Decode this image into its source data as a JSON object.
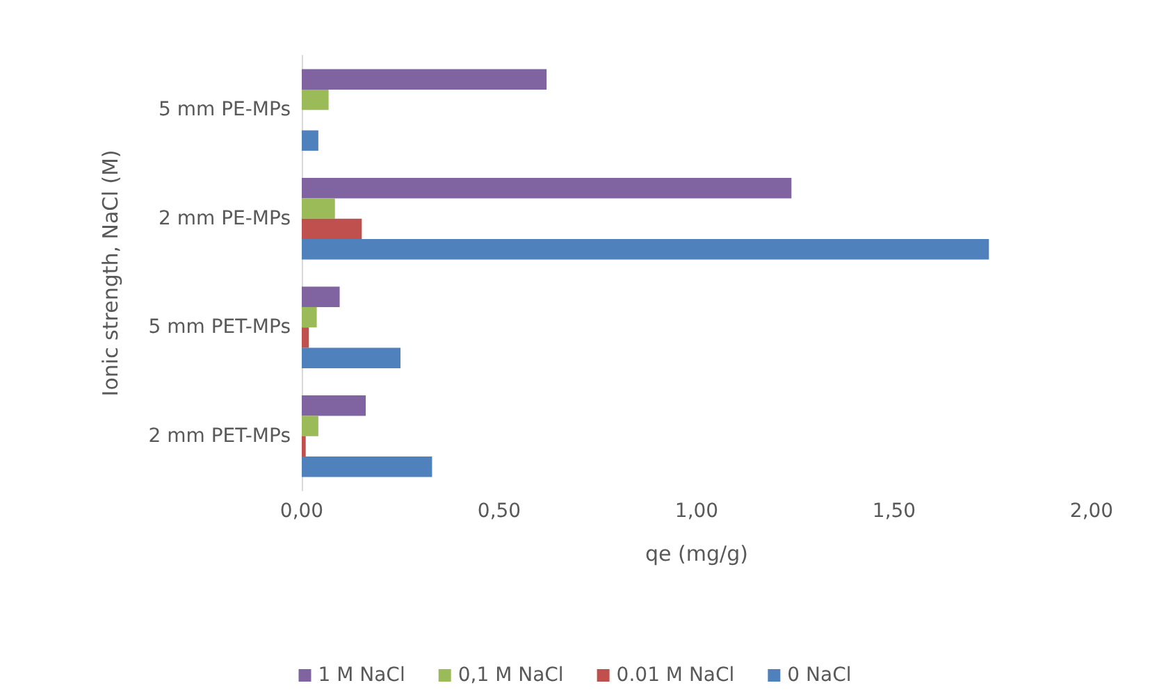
{
  "chart_data": {
    "type": "bar",
    "orientation": "horizontal",
    "xlabel": "qe (mg/g)",
    "ylabel": "Ionic strength, NaCl (M)",
    "categories": [
      "5 mm PE-MPs",
      "2 mm PE-MPs",
      "5 mm PET-MPs",
      "2 mm PET-MPs"
    ],
    "series": [
      {
        "name": "1 M NaCl",
        "color": "#8064a2",
        "values": [
          0.62,
          1.24,
          0.096,
          0.162
        ]
      },
      {
        "name": "0,1 M NaCl",
        "color": "#9bbb59",
        "values": [
          0.068,
          0.084,
          0.038,
          0.042
        ]
      },
      {
        "name": "0.01 M NaCl",
        "color": "#c0504d",
        "values": [
          0,
          0.152,
          0.018,
          0.01
        ]
      },
      {
        "name": "0 NaCl",
        "color": "#4f81bd",
        "values": [
          0.042,
          1.74,
          0.25,
          0.33
        ]
      }
    ],
    "xlim": [
      0,
      2
    ],
    "xticks": [
      {
        "value": 0,
        "label": "0,00"
      },
      {
        "value": 0.5,
        "label": "0,50"
      },
      {
        "value": 1,
        "label": "1,00"
      },
      {
        "value": 1.5,
        "label": "1,50"
      },
      {
        "value": 2,
        "label": "2,00"
      }
    ],
    "legend": "bottom",
    "grid": false
  }
}
